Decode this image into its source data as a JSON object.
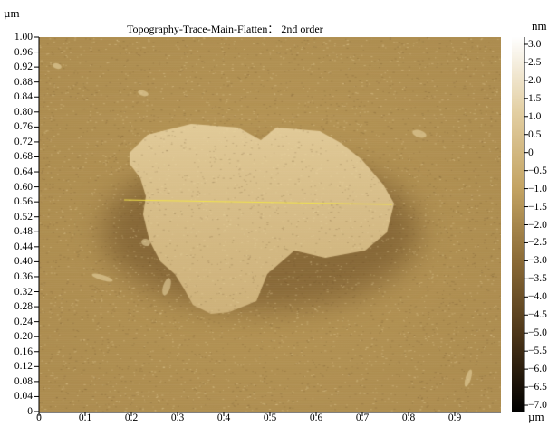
{
  "units": {
    "y": "µm",
    "x": "µm",
    "z": "nm"
  },
  "image": {
    "title": "Topography-Trace-Main-Flatten： 2nd  order",
    "y_ticks": [
      "1.00",
      "0.96",
      "0.92",
      "0.88",
      "0.84",
      "0.80",
      "0.76",
      "0.72",
      "0.68",
      "0.64",
      "0.60",
      "0.56",
      "0.52",
      "0.48",
      "0.44",
      "0.40",
      "0.36",
      "0.32",
      "0.28",
      "0.24",
      "0.20",
      "0.16",
      "0.12",
      "0.08",
      "0.04",
      "0"
    ],
    "x_ticks": [
      "0",
      "0.1",
      "0.2",
      "0.3",
      "0.4",
      "0.5",
      "0.6",
      "0.7",
      "0.8",
      "0.9"
    ],
    "profile_line_color": "#f2e34a",
    "colors": {
      "background": "#b89655",
      "flake": "#d7bd86",
      "halo": "#9c7a42"
    }
  },
  "colorbar": {
    "ticks": [
      "3.0",
      "2.5",
      "2.0",
      "1.5",
      "1.0",
      "0.5",
      "0",
      "−0.5",
      "−1.0",
      "−1.5",
      "−2.0",
      "−2.5",
      "−3.0",
      "−3.5",
      "−4.0",
      "−4.5",
      "−5.0",
      "−5.5",
      "−6.0",
      "−6.5",
      "−7.0"
    ],
    "range_nm": [
      -7.2,
      3.2
    ],
    "stops": [
      "#ffffff",
      "#e3cfa2",
      "#c4a463",
      "#8a6a36",
      "#4a3418",
      "#000000"
    ]
  }
}
